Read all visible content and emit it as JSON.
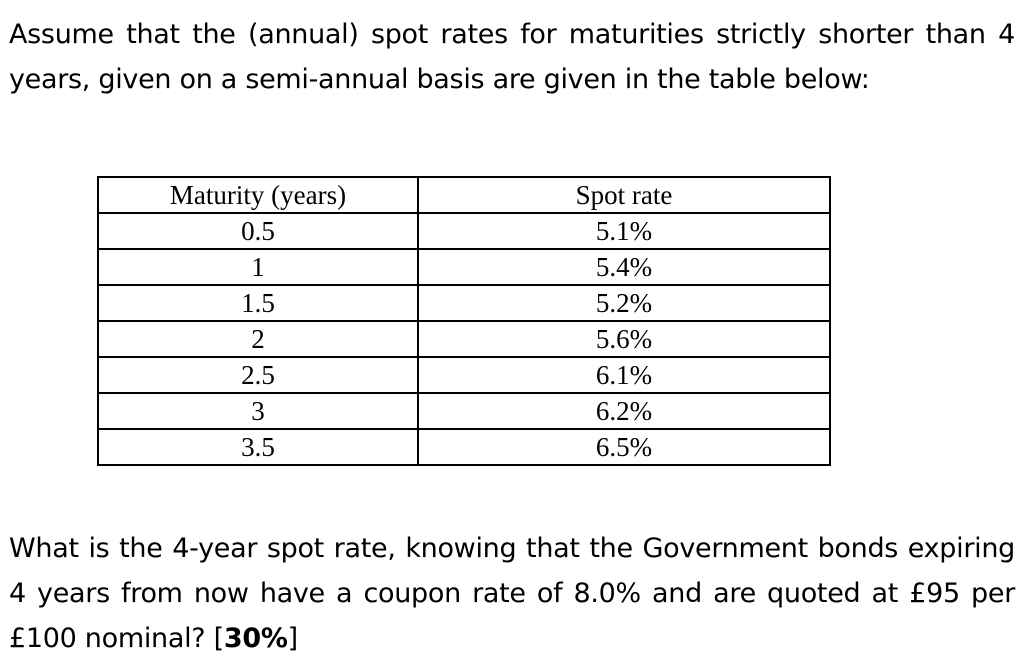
{
  "intro": {
    "text": "Assume that the (annual) spot rates for maturities strictly shorter than 4 years, given on a semi-annual basis are given in the table below:"
  },
  "table": {
    "headers": [
      "Maturity  (years)",
      "Spot rate"
    ],
    "rows": [
      [
        "0.5",
        "5.1%"
      ],
      [
        "1",
        "5.4%"
      ],
      [
        "1.5",
        "5.2%"
      ],
      [
        "2",
        "5.6%"
      ],
      [
        "2.5",
        "6.1%"
      ],
      [
        "3",
        "6.2%"
      ],
      [
        "3.5",
        "6.5%"
      ]
    ]
  },
  "question": {
    "text": "What is the 4-year spot rate, knowing that the Government bonds expiring 4 years from now have a coupon rate of 8.0% and are quoted at £95 per £100 nominal? [",
    "weight": "30%",
    "close": "]"
  }
}
